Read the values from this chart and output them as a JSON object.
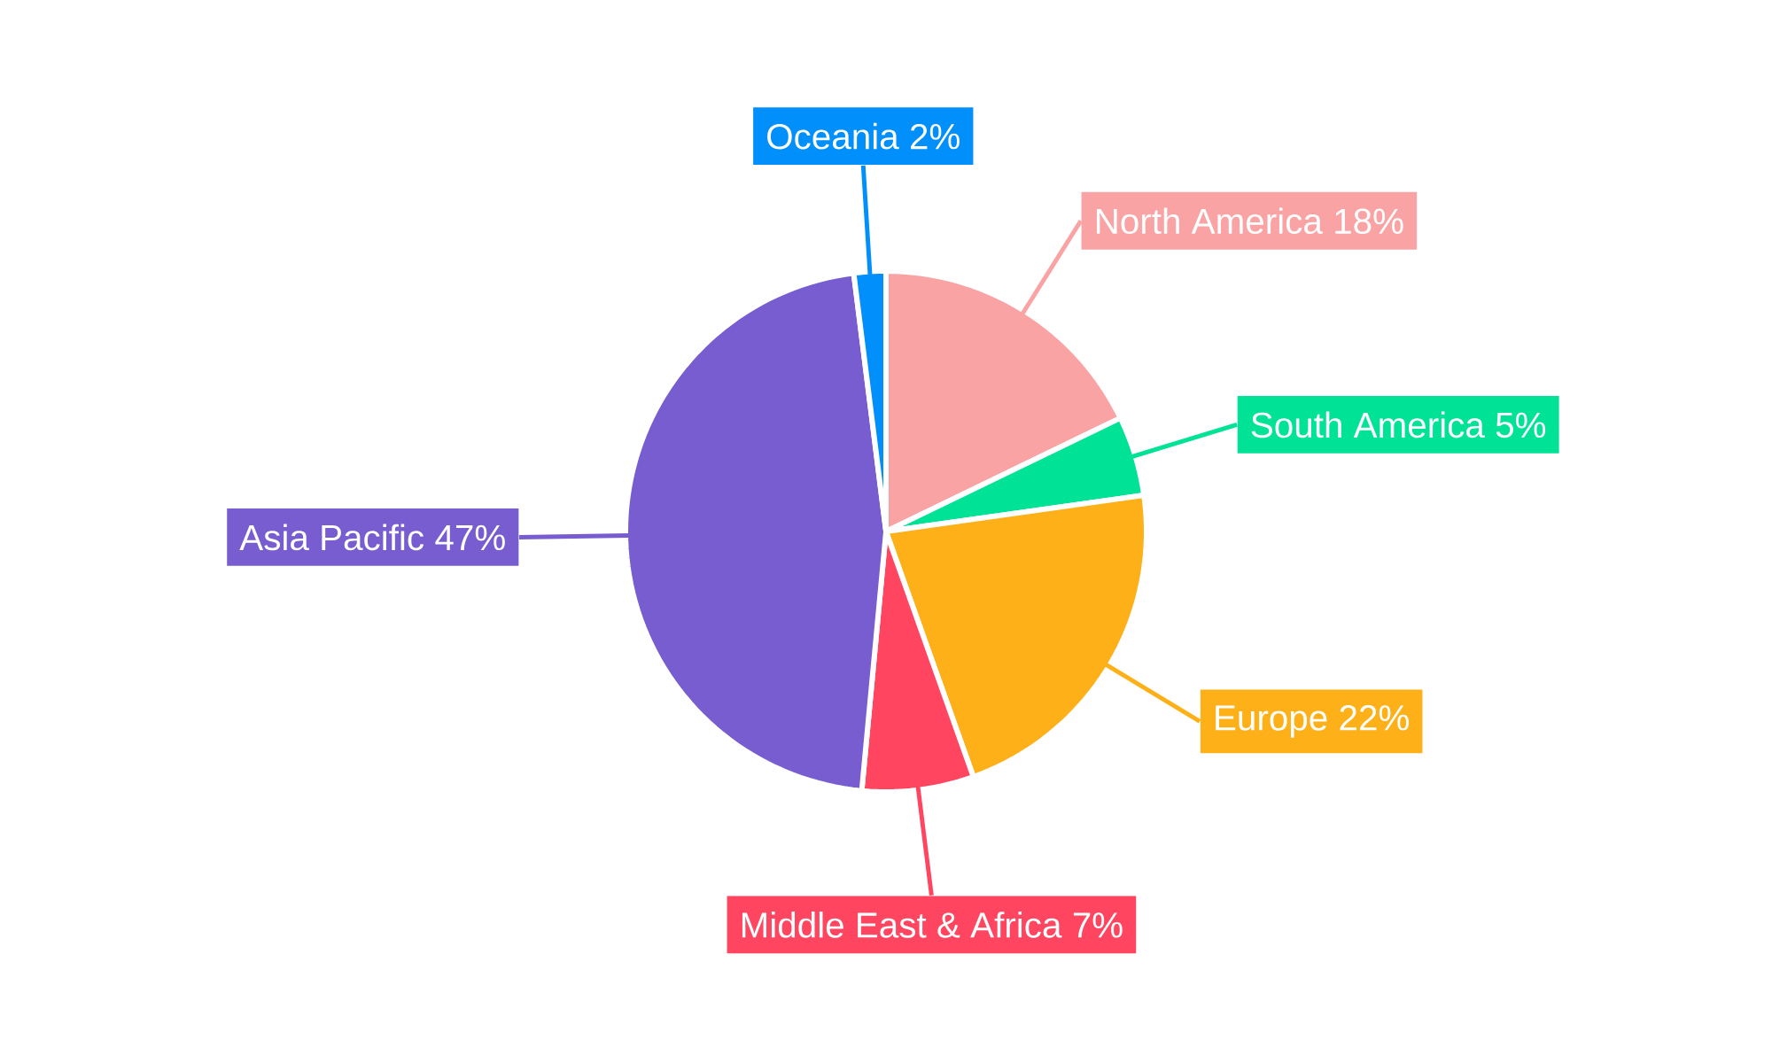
{
  "chart_data": {
    "type": "pie",
    "categories": [
      "North America",
      "South America",
      "Europe",
      "Middle East & Africa",
      "Asia Pacific",
      "Oceania"
    ],
    "values": [
      18,
      5,
      22,
      7,
      47,
      2
    ],
    "value_labels": [
      "18%",
      "5%",
      "22%",
      "7%",
      "47%",
      "2%"
    ],
    "colors": [
      "#f9a3a4",
      "#00e396",
      "#feb019",
      "#ff4560",
      "#775dd0",
      "#008ffb"
    ]
  }
}
